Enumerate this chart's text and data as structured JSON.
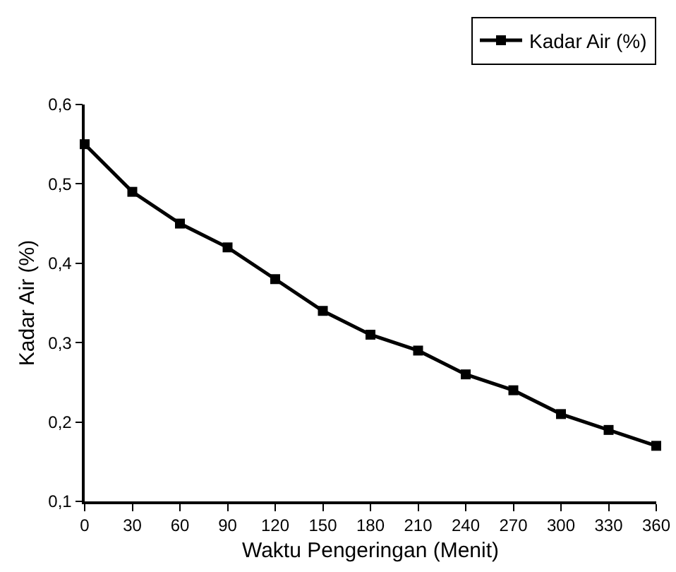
{
  "chart_data": {
    "type": "line",
    "xlabel": "Waktu Pengeringan (Menit)",
    "ylabel": "Kadar Air (%)",
    "x": [
      0,
      30,
      60,
      90,
      120,
      150,
      180,
      210,
      240,
      270,
      300,
      330,
      360
    ],
    "series": [
      {
        "name": "Kadar Air (%)",
        "color": "#000000",
        "values": [
          0.55,
          0.49,
          0.45,
          0.42,
          0.38,
          0.34,
          0.31,
          0.29,
          0.26,
          0.24,
          0.21,
          0.19,
          0.17
        ]
      }
    ],
    "xlim": [
      0,
      360
    ],
    "xticks": [
      0,
      30,
      60,
      90,
      120,
      150,
      180,
      210,
      240,
      270,
      300,
      330,
      360
    ],
    "ylim": [
      0.1,
      0.6
    ],
    "yticks": [
      {
        "value": 0.1,
        "label": "0,1"
      },
      {
        "value": 0.2,
        "label": "0,2"
      },
      {
        "value": 0.3,
        "label": "0,3"
      },
      {
        "value": 0.4,
        "label": "0,4"
      },
      {
        "value": 0.5,
        "label": "0,5"
      },
      {
        "value": 0.6,
        "label": "0,6"
      }
    ],
    "grid": false,
    "legend": "top right",
    "marker": "square",
    "line_style": "solid"
  }
}
